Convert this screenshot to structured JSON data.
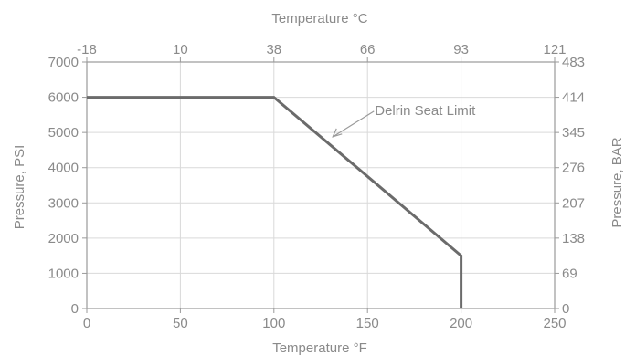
{
  "chart_data": {
    "type": "line",
    "title": "",
    "xlabel": "Temperature °F",
    "ylabel": "Pressure, PSI",
    "x2label": "Temperature °C",
    "y2label": "Pressure, BAR",
    "xlim": [
      0,
      250
    ],
    "ylim": [
      0,
      7000
    ],
    "x_ticks": [
      0,
      50,
      100,
      150,
      200,
      250
    ],
    "y_ticks": [
      0,
      1000,
      2000,
      3000,
      4000,
      5000,
      6000,
      7000
    ],
    "x2_ticks": [
      {
        "at": 0,
        "label": "-18"
      },
      {
        "at": 50,
        "label": "10"
      },
      {
        "at": 100,
        "label": "38"
      },
      {
        "at": 150,
        "label": "66"
      },
      {
        "at": 200,
        "label": "93"
      },
      {
        "at": 250,
        "label": "121"
      }
    ],
    "y2_ticks": [
      {
        "at": 0,
        "label": "0"
      },
      {
        "at": 1000,
        "label": "69"
      },
      {
        "at": 2000,
        "label": "138"
      },
      {
        "at": 3000,
        "label": "207"
      },
      {
        "at": 4000,
        "label": "276"
      },
      {
        "at": 5000,
        "label": "345"
      },
      {
        "at": 6000,
        "label": "414"
      },
      {
        "at": 7000,
        "label": "483"
      }
    ],
    "grid": true,
    "series": [
      {
        "x": [
          0,
          100,
          200,
          200
        ],
        "y": [
          6000,
          6000,
          1500,
          0
        ]
      }
    ],
    "annotations": [
      {
        "text": "Delrin Seat Limit",
        "point_x": 130,
        "point_y": 4800
      }
    ],
    "colors": {
      "line": "#6b6b6b",
      "text": "#8a8a8a",
      "grid": "#d9d9d9"
    }
  }
}
